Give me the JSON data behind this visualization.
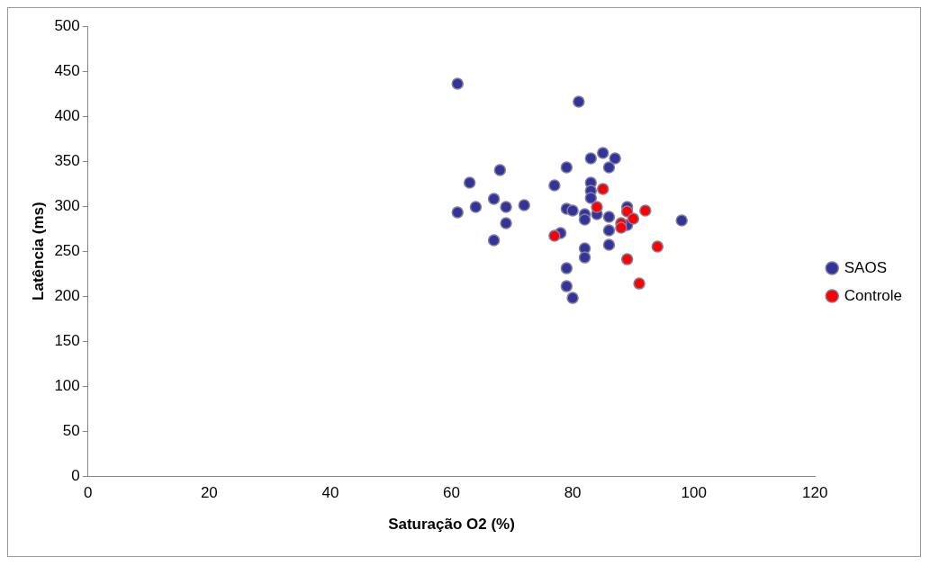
{
  "chart_data": {
    "type": "scatter",
    "xlabel": "Saturação O2 (%)",
    "ylabel": "Latência (ms)",
    "xlim": [
      0,
      120
    ],
    "xticks": [
      0,
      20,
      40,
      60,
      80,
      100,
      120
    ],
    "ylim": [
      0,
      500
    ],
    "yticks": [
      0,
      50,
      100,
      150,
      200,
      250,
      300,
      350,
      400,
      450,
      500
    ],
    "grid": false,
    "legend": "right",
    "marker": "circle",
    "series": [
      {
        "name": "SAOS",
        "color": "#333399",
        "x": [
          61,
          81,
          85,
          83,
          87,
          79,
          86,
          68,
          63,
          77,
          83,
          83,
          83,
          61,
          64,
          67,
          69,
          72,
          69,
          67,
          79,
          80,
          82,
          82,
          84,
          86,
          89,
          98,
          86,
          86,
          78,
          82,
          82,
          89,
          79,
          79,
          80
        ],
        "values": [
          436,
          416,
          359,
          353,
          353,
          343,
          343,
          340,
          326,
          323,
          326,
          317,
          309,
          293,
          299,
          308,
          299,
          301,
          281,
          262,
          297,
          295,
          291,
          285,
          291,
          288,
          299,
          284,
          273,
          257,
          270,
          253,
          243,
          279,
          231,
          211,
          198
        ]
      },
      {
        "name": "Controle",
        "color": "#ff0000",
        "x": [
          85,
          84,
          77,
          89,
          92,
          90,
          88,
          88,
          94,
          89,
          91
        ],
        "values": [
          319,
          299,
          267,
          294,
          295,
          286,
          281,
          276,
          255,
          241,
          214
        ]
      }
    ]
  }
}
